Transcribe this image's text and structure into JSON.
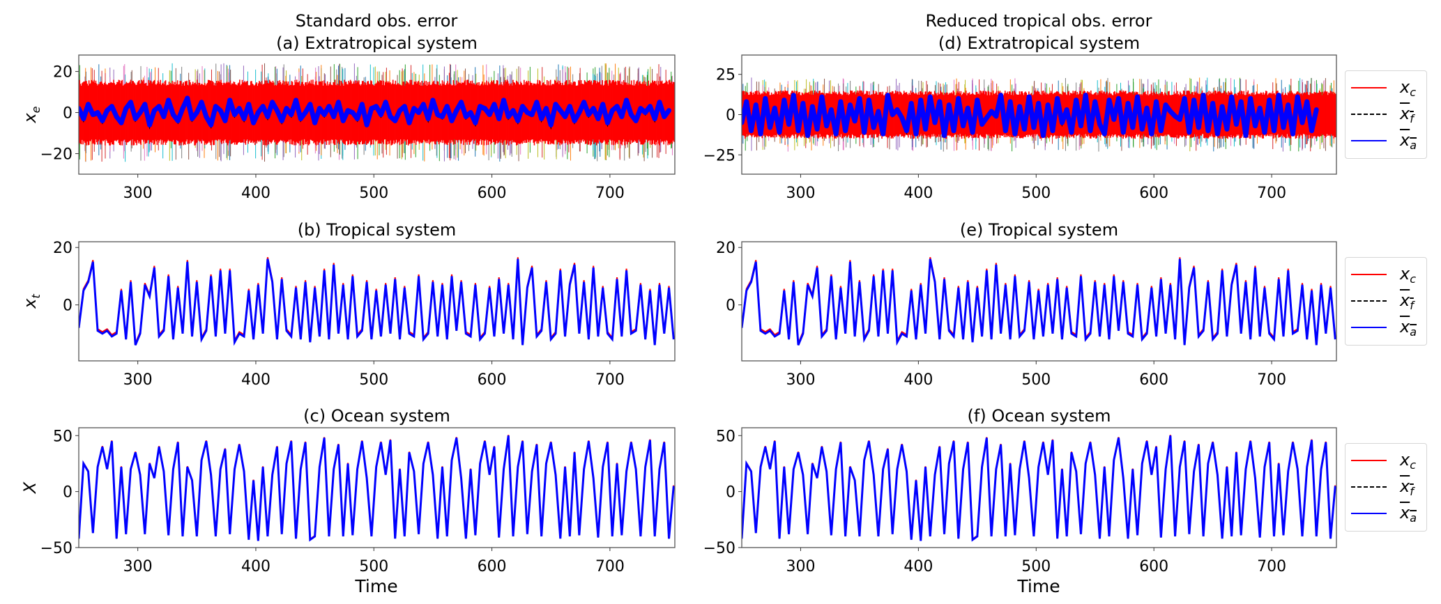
{
  "figure": {
    "column_titles": [
      "Standard obs. error",
      "Reduced tropical obs. error"
    ],
    "xlabel": "Time"
  },
  "legend": [
    {
      "base": "x",
      "sub": "c",
      "overline": false,
      "color": "#ff0000",
      "style": "solid"
    },
    {
      "base": "x",
      "sub": "f",
      "overline": true,
      "color": "#000000",
      "style": "dashed"
    },
    {
      "base": "x",
      "sub": "a",
      "overline": true,
      "color": "#0000ff",
      "style": "solid"
    }
  ],
  "chart_data": {
    "type": "line",
    "xlim": [
      250,
      755
    ],
    "xticks": [
      300,
      400,
      500,
      600,
      700
    ],
    "series_data": {
      "extra_std": {
        "t_start": 250,
        "t_step": 4,
        "values": [
          2,
          -3,
          4,
          -1,
          0,
          -4,
          1,
          3,
          -2,
          -5,
          2,
          5,
          -3,
          0,
          4,
          -6,
          1,
          3,
          -2,
          6,
          -1,
          -4,
          2,
          7,
          -3,
          0,
          5,
          -2,
          -6,
          3,
          1,
          -4,
          6,
          -1,
          2,
          -3,
          4,
          -5,
          0,
          3,
          -2,
          5,
          1,
          -4,
          2,
          -1,
          6,
          -3,
          0,
          4,
          -5,
          2,
          -1,
          3,
          -2,
          5,
          -4,
          1,
          0,
          -3,
          4,
          -6,
          2,
          3,
          -1,
          5,
          -2,
          -4,
          1,
          3,
          -5,
          2,
          0,
          4,
          -3,
          6,
          -1,
          -2,
          3,
          -4,
          1,
          5,
          -2,
          0,
          -5,
          3,
          2,
          -1,
          4,
          -3,
          6,
          -2,
          1,
          -4,
          3,
          0,
          -1,
          5,
          -3,
          2,
          -6,
          4,
          1,
          -2,
          3,
          -4,
          0,
          5,
          -1,
          2,
          -3,
          4,
          -5,
          1,
          3,
          -2,
          6,
          -1,
          -4,
          2,
          0,
          3,
          -3,
          5,
          -2,
          1
        ]
      },
      "extra_red": {
        "t_start": 250,
        "t_step": 4,
        "values": [
          -5,
          8,
          -10,
          6,
          -12,
          10,
          -8,
          4,
          -11,
          9,
          -6,
          12,
          -10,
          7,
          -13,
          5,
          -9,
          11,
          -7,
          3,
          -12,
          8,
          -10,
          6,
          -4,
          10,
          -11,
          9,
          -8,
          2,
          -12,
          12,
          0,
          3,
          -2,
          -10,
          7,
          -12,
          9,
          -9,
          11,
          -5,
          8,
          -13,
          6,
          -10,
          10,
          -7,
          4,
          -11,
          9,
          -6,
          -2,
          2,
          -1,
          12,
          -10,
          8,
          -12,
          5,
          -9,
          11,
          -8,
          7,
          -13,
          6,
          -10,
          10,
          -5,
          3,
          -11,
          9,
          -7,
          12,
          -10,
          8,
          -6,
          -12,
          9,
          -3,
          10,
          -11,
          7,
          -8,
          11,
          -9,
          4,
          -12,
          8,
          -10,
          6,
          2,
          -1,
          -3,
          10,
          -11,
          9,
          -8,
          12,
          -10,
          7,
          -12,
          5,
          -9,
          11,
          -6,
          8,
          -13,
          10,
          -7,
          4,
          -11,
          9,
          -10,
          12,
          -8,
          6,
          -12,
          11,
          -5,
          8,
          -10,
          3
        ]
      },
      "tropical": {
        "t_start": 250,
        "t_step": 4,
        "values": [
          -8,
          5,
          8,
          15,
          -9,
          -10,
          -9,
          -11,
          -10,
          5,
          -12,
          8,
          -14,
          -10,
          7,
          3,
          13,
          -11,
          -9,
          10,
          -12,
          6,
          -10,
          15,
          -11,
          8,
          -12,
          -9,
          10,
          -11,
          12,
          -10,
          12,
          -13,
          -10,
          -11,
          5,
          -12,
          7,
          -10,
          16,
          8,
          -12,
          9,
          -9,
          -11,
          6,
          -12,
          8,
          -13,
          6,
          -11,
          12,
          -12,
          14,
          -10,
          7,
          -12,
          10,
          -11,
          -9,
          8,
          -12,
          5,
          -11,
          7,
          -10,
          9,
          -12,
          6,
          -10,
          -11,
          10,
          -12,
          -10,
          8,
          -11,
          7,
          -12,
          10,
          -9,
          8,
          -10,
          -11,
          7,
          -12,
          -10,
          6,
          -11,
          9,
          -10,
          7,
          -12,
          16,
          -14,
          6,
          13,
          -11,
          -9,
          8,
          -12,
          -10,
          12,
          -11,
          7,
          14,
          -10,
          8,
          -12,
          13,
          -11,
          6,
          -10,
          -12,
          9,
          -11,
          12,
          -10,
          -9,
          7,
          -12,
          5,
          -14,
          7,
          -10,
          6,
          -12
        ]
      },
      "ocean": {
        "t_start": 250,
        "t_step": 4,
        "values": [
          -42,
          25,
          18,
          -37,
          22,
          40,
          20,
          45,
          -42,
          22,
          -38,
          20,
          35,
          15,
          -38,
          25,
          12,
          40,
          18,
          -39,
          20,
          44,
          -40,
          22,
          10,
          -40,
          28,
          45,
          15,
          -40,
          20,
          38,
          -38,
          20,
          42,
          18,
          -43,
          10,
          -44,
          22,
          -40,
          15,
          40,
          -38,
          25,
          45,
          -42,
          20,
          44,
          -43,
          -40,
          22,
          48,
          -40,
          20,
          42,
          -40,
          25,
          -39,
          20,
          45,
          12,
          -40,
          22,
          44,
          15,
          46,
          -42,
          20,
          -40,
          35,
          18,
          -38,
          25,
          44,
          15,
          -42,
          22,
          -40,
          28,
          48,
          12,
          -42,
          20,
          -39,
          25,
          45,
          15,
          40,
          -41,
          20,
          50,
          -40,
          22,
          45,
          -38,
          18,
          42,
          -40,
          25,
          44,
          15,
          -42,
          22,
          -40,
          35,
          -39,
          20,
          45,
          12,
          -41,
          22,
          44,
          -40,
          25,
          -39,
          18,
          44,
          20,
          -40,
          22,
          46,
          -40,
          20,
          44,
          -42,
          5
        ]
      }
    },
    "panels": [
      {
        "id": "a",
        "title": "(a) Extratropical system",
        "ylabel": "x",
        "ylabel_sub": "e",
        "ylim": [
          -30,
          28
        ],
        "yticks": [
          -20,
          0,
          20
        ],
        "forecast_spread_range": [
          -16,
          16
        ],
        "analysis_series": "extra_std",
        "column": 0,
        "row": 0,
        "legend": false
      },
      {
        "id": "b",
        "title": "(b) Tropical system",
        "ylabel": "x",
        "ylabel_sub": "t",
        "ylim": [
          -19.5,
          22
        ],
        "yticks": [
          0,
          20
        ],
        "analysis_series": "tropical",
        "column": 0,
        "row": 1,
        "legend": false
      },
      {
        "id": "c",
        "title": "(c) Ocean system",
        "ylabel": "X",
        "ylabel_sub": "",
        "ylim": [
          -50,
          57
        ],
        "yticks": [
          -50,
          0,
          50
        ],
        "analysis_series": "ocean",
        "column": 0,
        "row": 2,
        "legend": false
      },
      {
        "id": "d",
        "title": "(d) Extratropical system",
        "ylabel": "",
        "ylabel_sub": "",
        "ylim": [
          -37,
          37
        ],
        "yticks": [
          -25,
          0,
          25
        ],
        "forecast_spread_range": [
          -15,
          15
        ],
        "analysis_series": "extra_red",
        "column": 1,
        "row": 0,
        "legend": true
      },
      {
        "id": "e",
        "title": "(e) Tropical system",
        "ylabel": "",
        "ylabel_sub": "",
        "ylim": [
          -19.5,
          22
        ],
        "yticks": [
          0,
          20
        ],
        "analysis_series": "tropical",
        "column": 1,
        "row": 1,
        "legend": true
      },
      {
        "id": "f",
        "title": "(f) Ocean system",
        "ylabel": "",
        "ylabel_sub": "",
        "ylim": [
          -50,
          57
        ],
        "yticks": [
          -50,
          0,
          50
        ],
        "analysis_series": "ocean",
        "column": 1,
        "row": 2,
        "legend": true
      }
    ]
  }
}
